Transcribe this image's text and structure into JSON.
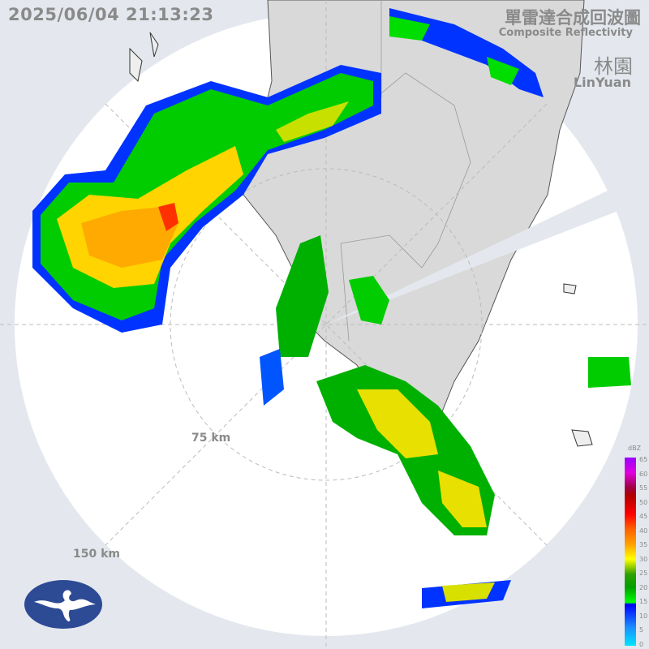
{
  "header": {
    "timestamp": "2025/06/04 21:13:23",
    "title_zh": "單雷達合成回波圖",
    "title_en": "Composite Reflectivity",
    "station_zh": "林園",
    "station_en": "LinYuan"
  },
  "rings": {
    "inner_label": "75 km",
    "outer_label": "150 km"
  },
  "legend": {
    "unit": "dBZ",
    "ticks": [
      "65",
      "60",
      "55",
      "50",
      "45",
      "40",
      "35",
      "30",
      "25",
      "20",
      "15",
      "10",
      "5",
      "0"
    ]
  },
  "colors": {
    "background": "#e4e8ee",
    "radar_range": "#ffffff",
    "land": "#d9d9d9",
    "logo": "#2d4a94"
  },
  "logo": {
    "icon": "cwa-cloud-logo"
  }
}
